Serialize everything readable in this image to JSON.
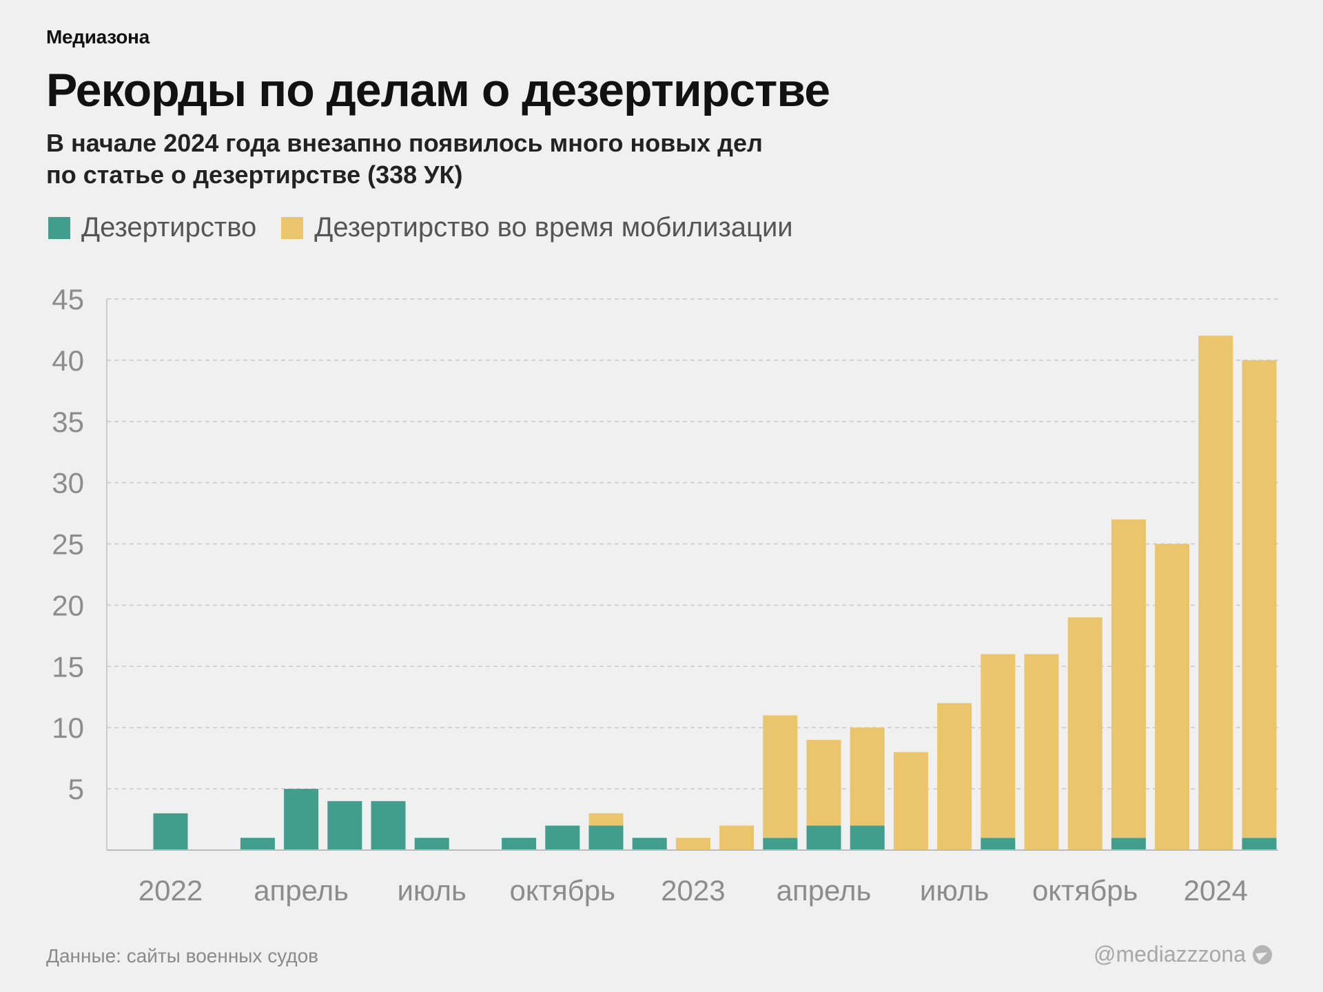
{
  "header": {
    "brand": "Медиазона",
    "title": "Рекорды по делам о дезертирстве",
    "subtitle_line1": "В начале 2024 года внезапно появилось много новых дел",
    "subtitle_line2": "по статье о дезертирстве (338 УК)"
  },
  "legend": [
    {
      "label": "Дезертирство",
      "color": "#419d8c"
    },
    {
      "label": "Дезертирство во время мобилизации",
      "color": "#eac56b"
    }
  ],
  "footer": {
    "source": "Данные: сайты военных судов",
    "handle": "@mediazzzona",
    "icon": "telegram-icon"
  },
  "chart_data": {
    "type": "bar",
    "stacked": true,
    "categories": [
      "2022-01",
      "2022-02",
      "2022-03",
      "2022-04",
      "2022-05",
      "2022-06",
      "2022-07",
      "2022-08",
      "2022-09",
      "2022-10",
      "2022-11",
      "2022-12",
      "2023-01",
      "2023-02",
      "2023-03",
      "2023-04",
      "2023-05",
      "2023-06",
      "2023-07",
      "2023-08",
      "2023-09",
      "2023-10",
      "2023-11",
      "2023-12",
      "2024-01",
      "2024-02"
    ],
    "x_tick_labels": [
      {
        "category": "2022-01",
        "label": "2022"
      },
      {
        "category": "2022-04",
        "label": "апрель"
      },
      {
        "category": "2022-07",
        "label": "июль"
      },
      {
        "category": "2022-10",
        "label": "октябрь"
      },
      {
        "category": "2023-01",
        "label": "2023"
      },
      {
        "category": "2023-04",
        "label": "апрель"
      },
      {
        "category": "2023-07",
        "label": "июль"
      },
      {
        "category": "2023-10",
        "label": "октябрь"
      },
      {
        "category": "2024-01",
        "label": "2024"
      }
    ],
    "series": [
      {
        "name": "Дезертирство",
        "color": "#419d8c",
        "values": [
          3,
          0,
          1,
          5,
          4,
          4,
          1,
          0,
          1,
          2,
          2,
          1,
          0,
          0,
          1,
          2,
          2,
          0,
          0,
          1,
          0,
          0,
          1,
          0,
          0,
          1
        ]
      },
      {
        "name": "Дезертирство во время мобилизации",
        "color": "#eac56b",
        "values": [
          0,
          0,
          0,
          0,
          0,
          0,
          0,
          0,
          0,
          0,
          1,
          0,
          1,
          2,
          10,
          7,
          8,
          8,
          12,
          15,
          16,
          19,
          26,
          25,
          42,
          39
        ]
      }
    ],
    "ylim": [
      0,
      45
    ],
    "y_ticks": [
      5,
      10,
      15,
      20,
      25,
      30,
      35,
      40,
      45
    ],
    "grid": true,
    "legend_position": "top-left"
  }
}
